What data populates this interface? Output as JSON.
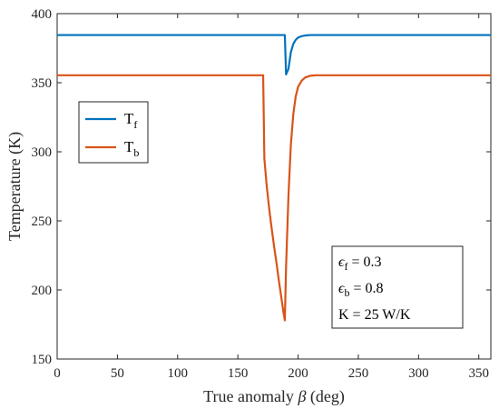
{
  "chart_data": {
    "type": "line",
    "title": "",
    "xlabel": "True anomaly β (deg)",
    "ylabel": "Temperature (K)",
    "xlim": [
      0,
      360
    ],
    "ylim": [
      150,
      400
    ],
    "xticks": [
      0,
      50,
      100,
      150,
      200,
      250,
      300,
      350
    ],
    "yticks": [
      150,
      200,
      250,
      300,
      350,
      400
    ],
    "grid": false,
    "legend_position": "upper-left",
    "series": [
      {
        "name": "T_f",
        "color": "#0072BD",
        "x": [
          0,
          171,
          172,
          175,
          180,
          185,
          189,
          190,
          192,
          194,
          196,
          198,
          200,
          203,
          206,
          210,
          215,
          360
        ],
        "y": [
          384.5,
          384.5,
          384.5,
          384.5,
          384.5,
          384.5,
          384.5,
          356,
          360,
          372,
          378,
          381,
          382.7,
          383.7,
          384.2,
          384.5,
          384.5,
          384.5
        ]
      },
      {
        "name": "T_b",
        "color": "#D95319",
        "x": [
          0,
          171,
          172,
          174,
          176,
          178,
          180,
          182,
          184,
          186,
          188,
          189,
          190,
          192,
          194,
          196,
          198,
          200,
          203,
          206,
          210,
          215,
          360
        ],
        "y": [
          355.4,
          355.4,
          295,
          275,
          259,
          245,
          232,
          220,
          207,
          195,
          183,
          178,
          216,
          268,
          305,
          327,
          340,
          347,
          351.5,
          353.8,
          355.0,
          355.4,
          355.4
        ]
      }
    ],
    "annotations": [
      {
        "symbol": "ϵ",
        "sub": "f",
        "text": " = 0.3"
      },
      {
        "symbol": "ϵ",
        "sub": "b",
        "text": " = 0.8"
      },
      {
        "symbol": "",
        "sub": "",
        "text": "K = 25 W/K"
      }
    ]
  },
  "legend": [
    {
      "main": "T",
      "sub": "f"
    },
    {
      "main": "T",
      "sub": "b"
    }
  ],
  "xlabel_parts": {
    "before": "True anomaly ",
    "symbol": "β",
    "after": " (deg)"
  }
}
